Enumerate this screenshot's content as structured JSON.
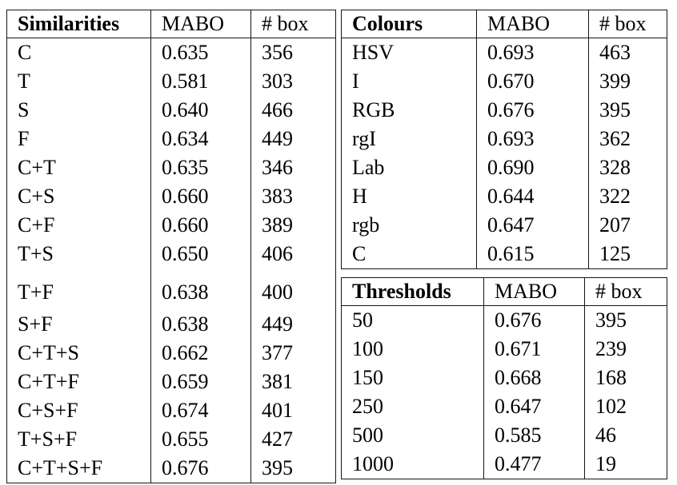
{
  "page": {
    "background_color": "#ffffff",
    "text_color": "#000000",
    "border_color": "#161616"
  },
  "tables": {
    "similarities": {
      "headers": [
        "Similarities",
        "MABO",
        "# box"
      ],
      "rows": [
        [
          "C",
          "0.635",
          "356"
        ],
        [
          "T",
          "0.581",
          "303"
        ],
        [
          "S",
          "0.640",
          "466"
        ],
        [
          "F",
          "0.634",
          "449"
        ],
        [
          "C+T",
          "0.635",
          "346"
        ],
        [
          "C+S",
          "0.660",
          "383"
        ],
        [
          "C+F",
          "0.660",
          "389"
        ],
        [
          "T+S",
          "0.650",
          "406"
        ],
        [
          "T+F",
          "0.638",
          "400"
        ],
        [
          "S+F",
          "0.638",
          "449"
        ],
        [
          "C+T+S",
          "0.662",
          "377"
        ],
        [
          "C+T+F",
          "0.659",
          "381"
        ],
        [
          "C+S+F",
          "0.674",
          "401"
        ],
        [
          "T+S+F",
          "0.655",
          "427"
        ],
        [
          "C+T+S+F",
          "0.676",
          "395"
        ]
      ],
      "gap_before_row": 8
    },
    "colours": {
      "headers": [
        "Colours",
        "MABO",
        "# box"
      ],
      "rows": [
        [
          "HSV",
          "0.693",
          "463"
        ],
        [
          "I",
          "0.670",
          "399"
        ],
        [
          "RGB",
          "0.676",
          "395"
        ],
        [
          "rgI",
          "0.693",
          "362"
        ],
        [
          "Lab",
          "0.690",
          "328"
        ],
        [
          "H",
          "0.644",
          "322"
        ],
        [
          "rgb",
          "0.647",
          "207"
        ],
        [
          "C",
          "0.615",
          "125"
        ]
      ]
    },
    "thresholds": {
      "headers": [
        "Thresholds",
        "MABO",
        "# box"
      ],
      "rows": [
        [
          "50",
          "0.676",
          "395"
        ],
        [
          "100",
          "0.671",
          "239"
        ],
        [
          "150",
          "0.668",
          "168"
        ],
        [
          "250",
          "0.647",
          "102"
        ],
        [
          "500",
          "0.585",
          "46"
        ],
        [
          "1000",
          "0.477",
          "19"
        ]
      ]
    }
  }
}
